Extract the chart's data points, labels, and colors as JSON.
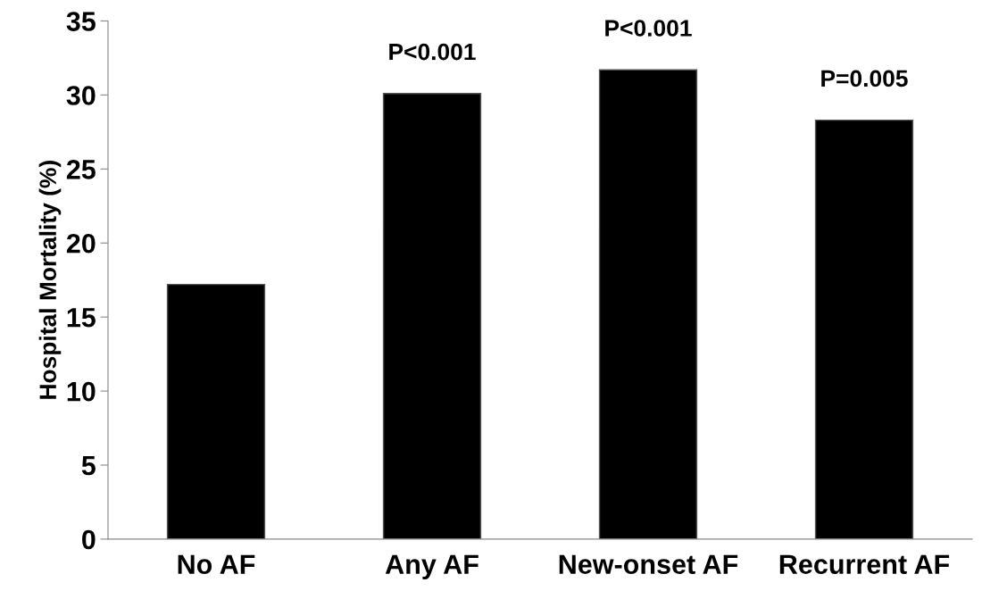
{
  "chart_data": {
    "type": "bar",
    "ylabel": "Hospital Mortality (%)",
    "categories": [
      "No AF",
      "Any AF",
      "New-onset AF",
      "Recurrent AF"
    ],
    "values": [
      17.2,
      30.1,
      31.7,
      28.3
    ],
    "color": "#000000",
    "ylim": [
      0,
      35
    ],
    "yticks": [
      0,
      5,
      10,
      15,
      20,
      25,
      30,
      35
    ],
    "grid": false,
    "annotations": [
      "P<0.001",
      "P<0.001",
      "P=0.005"
    ]
  }
}
